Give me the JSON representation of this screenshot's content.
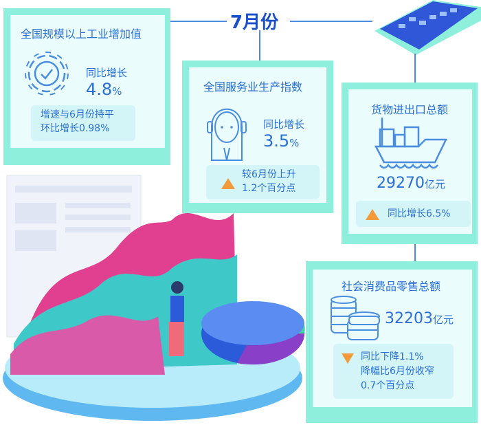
{
  "header": {
    "title": "7月份"
  },
  "industry": {
    "title": "全国规模以上工业增加值",
    "label": "同比增长",
    "value": "4.8",
    "unit": "%",
    "note1": "增速与6月份持平",
    "note2": "环比增长0.98%",
    "icon": "gear-check-icon"
  },
  "services": {
    "title": "全国服务业生产指数",
    "label": "同比增长",
    "value": "3.5",
    "unit": "%",
    "note1": "较6月份上升",
    "note2": "1.2个百分点",
    "trend": "up",
    "icon": "customer-service-icon"
  },
  "trade": {
    "title": "货物进出口总额",
    "value": "29270",
    "unit": "亿元",
    "note": "同比增长6.5%",
    "trend": "up",
    "icon": "cargo-ship-icon"
  },
  "retail": {
    "title": "社会消费品零售总额",
    "value": "32203",
    "unit": "亿元",
    "note1": "同比下降1.1%",
    "note2": "降幅比6月份收窄",
    "note3": "0.7个百分点",
    "trend": "down",
    "icon": "coins-icon"
  },
  "colors": {
    "accent": "#2a6fd6",
    "card": "#8ef0dc",
    "trend": "#f39a3a",
    "title": "#1b4fc9"
  }
}
